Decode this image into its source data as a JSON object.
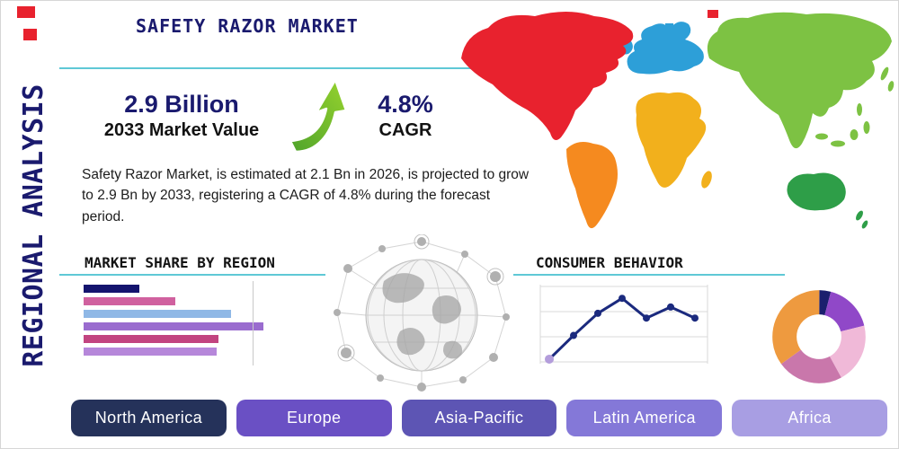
{
  "theme": {
    "navy": "#1a1a6e",
    "accent_teal": "#5fc8d6",
    "red": "#e8222e",
    "background": "#ffffff"
  },
  "page": {
    "vertical_label": "REGIONAL ANALYSIS",
    "title": "SAFETY RAZOR MARKET"
  },
  "stats": {
    "market_value": "2.9 Billion",
    "market_value_caption": "2033 Market Value",
    "cagr_value": "4.8%",
    "cagr_caption": "CAGR",
    "description": "Safety Razor Market, is estimated at 2.1 Bn in 2026, is projected to grow to 2.9 Bn by 2033, registering a CAGR of 4.8% during the forecast period."
  },
  "sections": {
    "market_share": {
      "title": "MARKET SHARE BY REGION"
    },
    "consumer_behavior": {
      "title": "CONSUMER BEHAVIOR"
    }
  },
  "map": {
    "continents": [
      {
        "name": "North America",
        "color": "#e8222e"
      },
      {
        "name": "South America",
        "color": "#f58a1f"
      },
      {
        "name": "Europe",
        "color": "#2d9fd8"
      },
      {
        "name": "Africa",
        "color": "#f2b01c"
      },
      {
        "name": "Asia",
        "color": "#7dc243"
      },
      {
        "name": "Australia",
        "color": "#2e9e48"
      }
    ]
  },
  "regions": [
    {
      "label": "North America",
      "color": "#25325a"
    },
    {
      "label": "Europe",
      "color": "#6a50c4"
    },
    {
      "label": "Asia-Pacific",
      "color": "#5d55b4"
    },
    {
      "label": "Latin America",
      "color": "#8478d8"
    },
    {
      "label": "Africa",
      "color": "#a89ee3"
    }
  ],
  "chart_data": [
    {
      "id": "market_share_bars",
      "type": "bar",
      "title": "MARKET SHARE BY REGION",
      "orientation": "horizontal",
      "values": [
        31,
        51,
        82,
        100,
        75,
        74
      ],
      "colors": [
        "#14146e",
        "#d0619f",
        "#8fb8e6",
        "#9a6ccf",
        "#c24480",
        "#b687da"
      ],
      "xlim": [
        0,
        100
      ],
      "grid": true
    },
    {
      "id": "consumer_behavior_line",
      "type": "line",
      "title": "CONSUMER BEHAVIOR",
      "x": [
        1,
        2,
        3,
        4,
        5,
        6,
        7
      ],
      "values": [
        8,
        38,
        66,
        85,
        60,
        74,
        60
      ],
      "ylim": [
        0,
        100
      ],
      "line_color": "#1b2a7e",
      "marker_color": "#1b2a7e",
      "first_marker_color": "#b39ddb",
      "grid": true
    },
    {
      "id": "regional_share_donut",
      "type": "pie",
      "donut": true,
      "slices": [
        {
          "value": 4,
          "color": "#1b1f6e"
        },
        {
          "value": 17,
          "color": "#9048c8"
        },
        {
          "value": 21,
          "color": "#f0b9d8"
        },
        {
          "value": 23,
          "color": "#c977ab"
        },
        {
          "value": 35,
          "color": "#ee9a3f"
        }
      ]
    }
  ]
}
